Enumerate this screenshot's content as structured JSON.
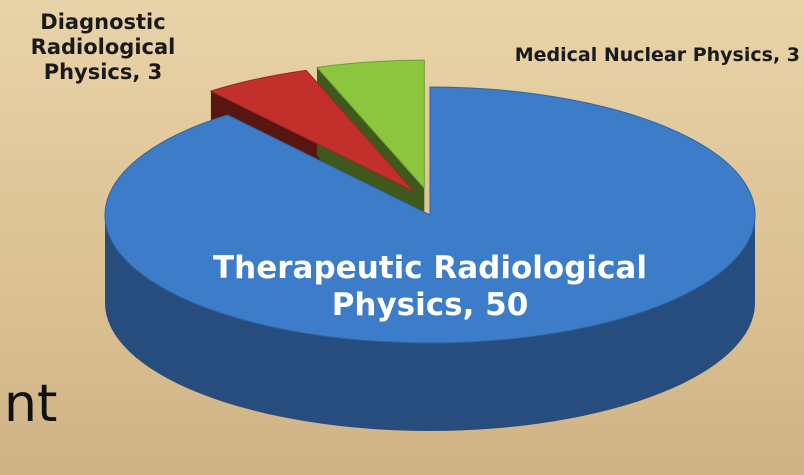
{
  "chart_data": {
    "type": "pie",
    "labels": [
      "Therapeutic Radiological Physics, 50",
      "Diagnostic Radiological Physics, 3",
      "Medical Nuclear Physics, 3"
    ],
    "values": [
      50,
      3,
      3
    ],
    "colors": [
      "#3d7cc9",
      "#c3302b",
      "#8cc63f"
    ],
    "label_colors": [
      "#ffffff",
      "#1a1a1a",
      "#1a1a1a"
    ]
  },
  "slide_text": "nt"
}
